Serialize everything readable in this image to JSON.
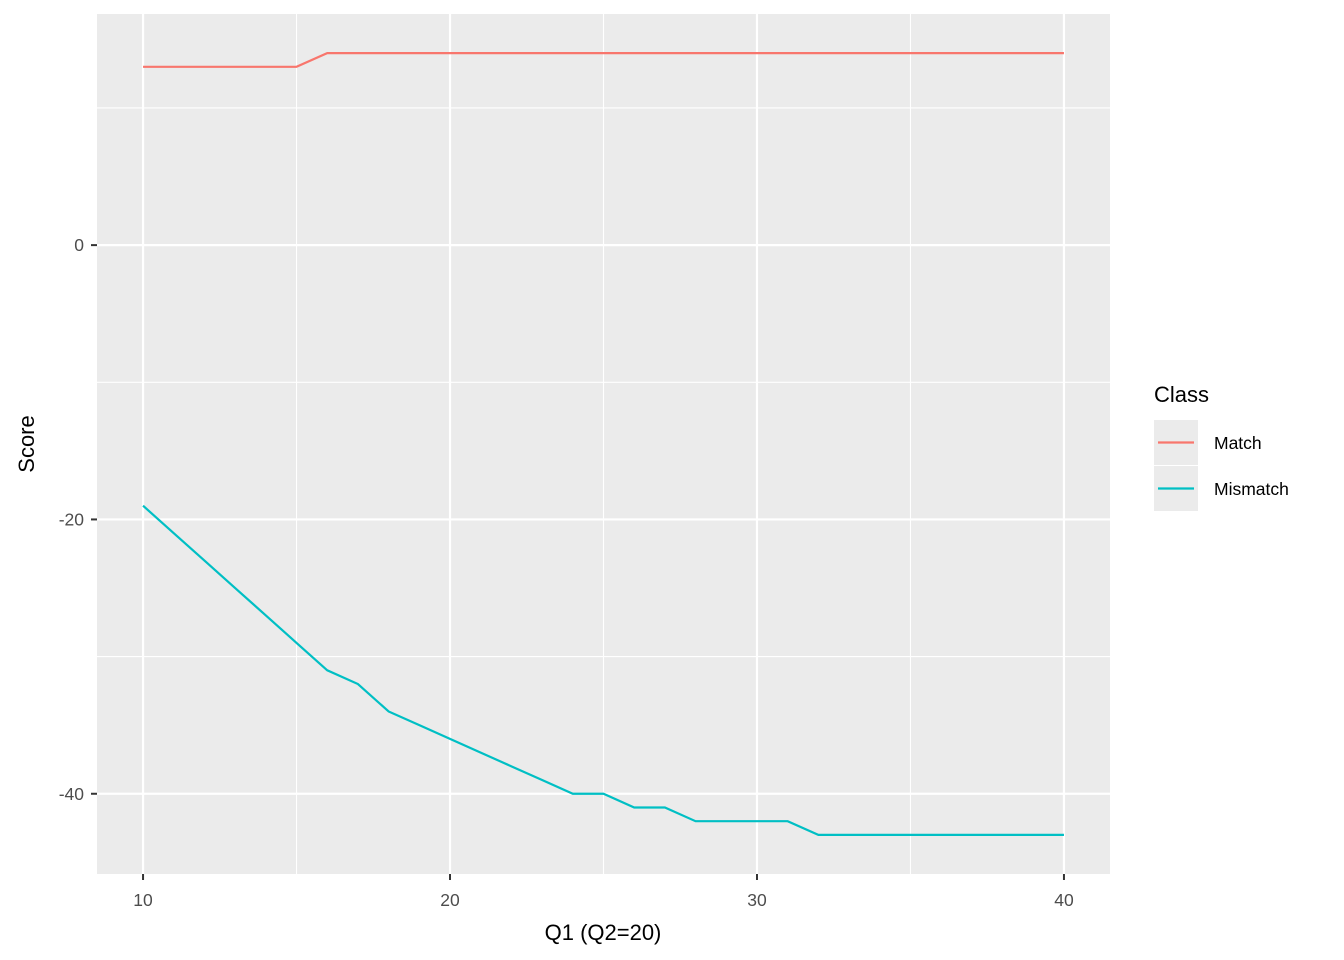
{
  "chart_data": {
    "type": "line",
    "title": "",
    "xlabel": "Q1 (Q2=20)",
    "ylabel": "Score",
    "xlim": [
      8.5,
      41.5
    ],
    "ylim": [
      -45.85,
      16.85
    ],
    "x_ticks": [
      10,
      20,
      30,
      40
    ],
    "y_ticks": [
      -40,
      -20,
      0
    ],
    "grid": true,
    "legend": {
      "title": "Class",
      "placement": "right"
    },
    "x": [
      10,
      11,
      12,
      13,
      14,
      15,
      16,
      17,
      18,
      19,
      20,
      21,
      22,
      23,
      24,
      25,
      26,
      27,
      28,
      29,
      30,
      31,
      32,
      33,
      34,
      35,
      36,
      37,
      38,
      39,
      40
    ],
    "series": [
      {
        "name": "Match",
        "color": "#F8766D",
        "values": [
          13,
          13,
          13,
          13,
          13,
          13,
          14,
          14,
          14,
          14,
          14,
          14,
          14,
          14,
          14,
          14,
          14,
          14,
          14,
          14,
          14,
          14,
          14,
          14,
          14,
          14,
          14,
          14,
          14,
          14,
          14
        ]
      },
      {
        "name": "Mismatch",
        "color": "#00BFC4",
        "values": [
          -19,
          -21,
          -23,
          -25,
          -27,
          -29,
          -31,
          -32,
          -34,
          -35,
          -36,
          -37,
          -38,
          -39,
          -40,
          -40,
          -41,
          -41,
          -42,
          -42,
          -42,
          -42,
          -43,
          -43,
          -43,
          -43,
          -43,
          -43,
          -43,
          -43,
          -43
        ]
      }
    ]
  }
}
